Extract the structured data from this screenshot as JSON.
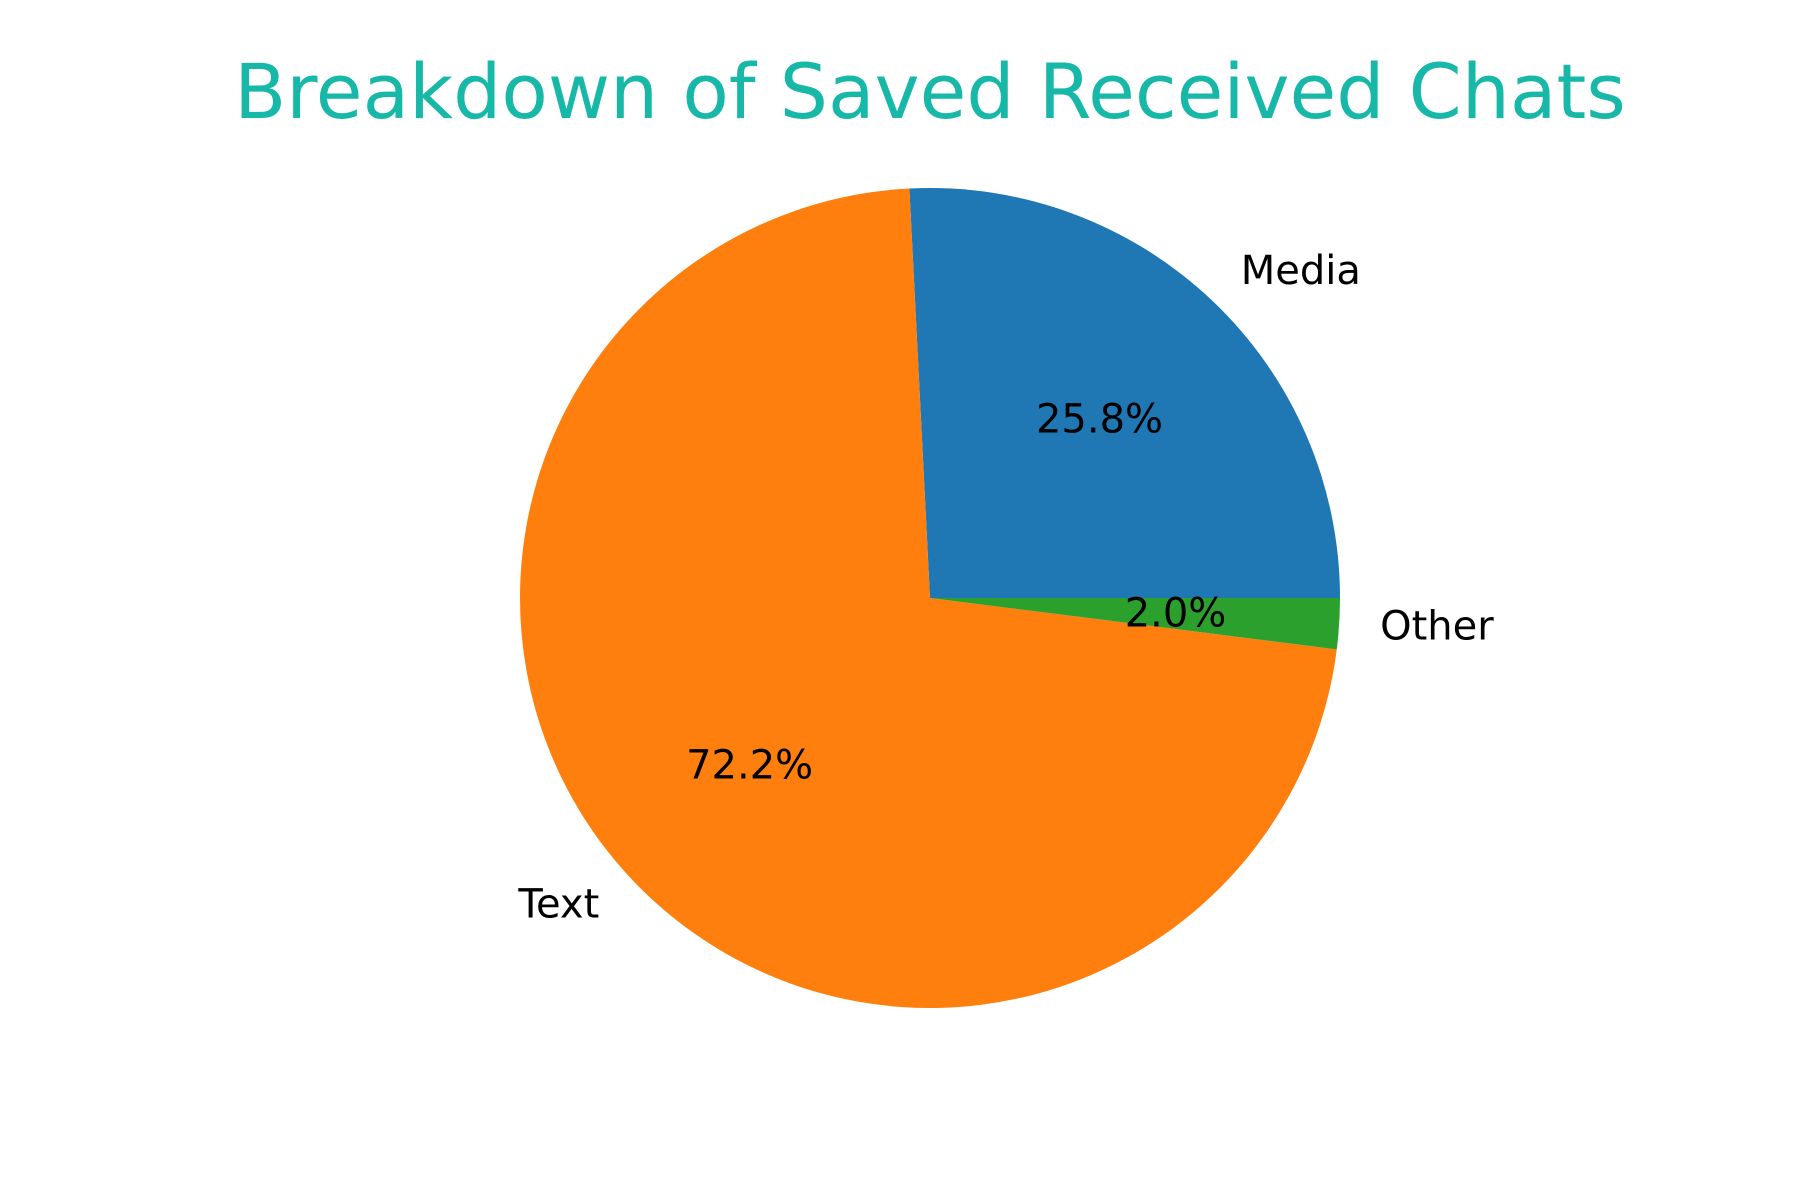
{
  "chart_data": {
    "type": "pie",
    "title": "Breakdown of Saved Received Chats",
    "title_color": "#17b8a8",
    "start_angle_deg": 0,
    "direction": "counterclockwise",
    "legend": "none",
    "slices": [
      {
        "label": "Media",
        "value": 25.8,
        "pct_label": "25.8%",
        "color": "#1f77b4"
      },
      {
        "label": "Text",
        "value": 72.2,
        "pct_label": "72.2%",
        "color": "#ff7f0e"
      },
      {
        "label": "Other",
        "value": 2.0,
        "pct_label": "2.0%",
        "color": "#2ca02c"
      }
    ]
  }
}
